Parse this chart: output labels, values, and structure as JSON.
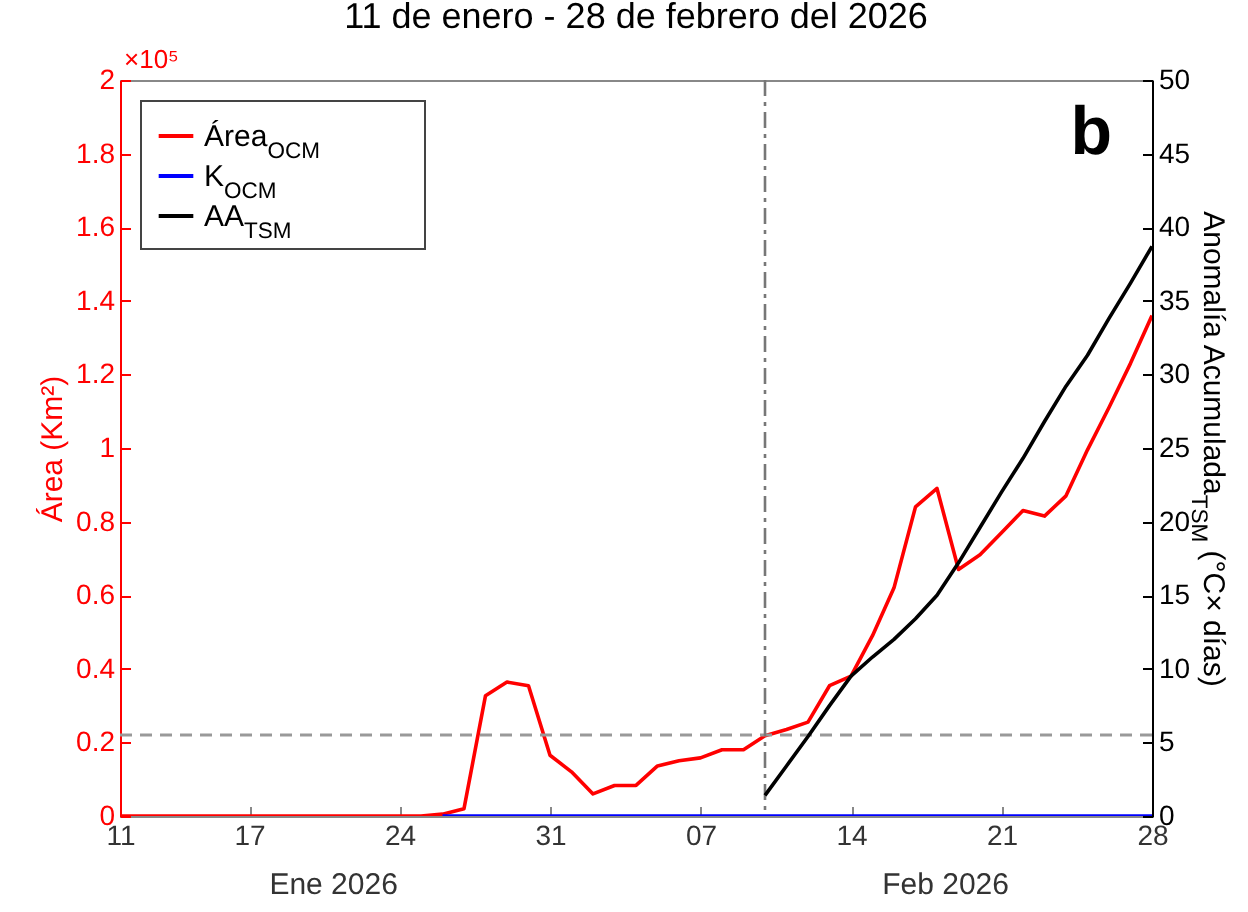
{
  "chart_data": {
    "type": "line",
    "title": "11 de enero - 28 de febrero del 2026",
    "ylabel": "Área (Km²)",
    "y2label": "Anomalía Acumulada$_{TSM}$ (°C× días)",
    "annotations": [
      "b",
      "×10⁵",
      "Ene 2026",
      "Feb 2026"
    ],
    "series": [
      {
        "name": "Área$_{OCM}$",
        "color": "#ff0000",
        "x": [
          "2026-01-11",
          "2026-01-25",
          "2026-01-26",
          "2026-01-27",
          "2026-01-28",
          "2026-01-29",
          "2026-01-30",
          "2026-01-31",
          "2026-02-01",
          "2026-02-02",
          "2026-02-03",
          "2026-02-04",
          "2026-02-05",
          "2026-02-06",
          "2026-02-07",
          "2026-02-08",
          "2026-02-09",
          "2026-02-10",
          "2026-02-11",
          "2026-02-12",
          "2026-02-13",
          "2026-02-14",
          "2026-02-15",
          "2026-02-16",
          "2026-02-17",
          "2026-02-18",
          "2026-02-19",
          "2026-02-20",
          "2026-02-21",
          "2026-02-22",
          "2026-02-23",
          "2026-02-24",
          "2026-02-25",
          "2026-02-26",
          "2026-02-27",
          "2026-02-28"
        ],
        "values": [
          0,
          0,
          0.005,
          0.02,
          0.327,
          0.364,
          0.354,
          0.165,
          0.12,
          0.06,
          0.083,
          0.083,
          0.136,
          0.15,
          0.158,
          0.18,
          0.18,
          0.218,
          0.235,
          0.255,
          0.354,
          0.38,
          0.49,
          0.62,
          0.84,
          0.89,
          0.67,
          0.71,
          0.77,
          0.83,
          0.815,
          0.87,
          0.995,
          1.11,
          1.23,
          1.36
        ]
      },
      {
        "name": "K$_{OCM}$",
        "color": "#0000ff",
        "x": [
          "2026-01-26",
          "2026-02-28"
        ],
        "values": [
          0,
          0
        ]
      },
      {
        "name": "AA$_{TSM}$",
        "color": "#000000",
        "axis": "y2",
        "x": [
          "2026-02-10",
          "2026-02-11",
          "2026-02-12",
          "2026-02-13",
          "2026-02-14",
          "2026-02-15",
          "2026-02-16",
          "2026-02-17",
          "2026-02-18",
          "2026-02-19",
          "2026-02-20",
          "2026-02-21",
          "2026-02-22",
          "2026-02-23",
          "2026-02-24",
          "2026-02-25",
          "2026-02-26",
          "2026-02-27",
          "2026-02-28"
        ],
        "values": [
          1.4,
          3.4,
          5.4,
          7.5,
          9.5,
          10.8,
          12.0,
          13.4,
          15.0,
          17.2,
          19.6,
          22.0,
          24.3,
          26.8,
          29.2,
          31.3,
          33.8,
          36.2,
          38.7
        ]
      }
    ],
    "xlim": [
      "2026-01-11",
      "2026-02-28"
    ],
    "xticks": [
      {
        "value": "2026-01-11",
        "label": "11"
      },
      {
        "value": "2026-01-17",
        "label": "17"
      },
      {
        "value": "2026-01-24",
        "label": "24"
      },
      {
        "value": "2026-01-31",
        "label": "31"
      },
      {
        "value": "2026-02-07",
        "label": "07"
      },
      {
        "value": "2026-02-14",
        "label": "14"
      },
      {
        "value": "2026-02-21",
        "label": "21"
      },
      {
        "value": "2026-02-28",
        "label": "28"
      }
    ],
    "ylim": [
      0,
      2
    ],
    "yticks": [
      0,
      0.2,
      0.4,
      0.6,
      0.8,
      1,
      1.2,
      1.4,
      1.6,
      1.8,
      2
    ],
    "y2lim": [
      0,
      50
    ],
    "y2ticks": [
      0,
      5,
      10,
      15,
      20,
      25,
      30,
      35,
      40,
      45,
      50
    ],
    "ref_lines": [
      {
        "axis": "y",
        "value": 0.22,
        "color": "#999999",
        "line_style": "dashed"
      },
      {
        "axis": "x",
        "value": "2026-02-10",
        "color": "#777777",
        "line_style": "dashdot"
      }
    ],
    "legend": "top left",
    "grid": false,
    "marker": "none",
    "line_style": "solid"
  }
}
